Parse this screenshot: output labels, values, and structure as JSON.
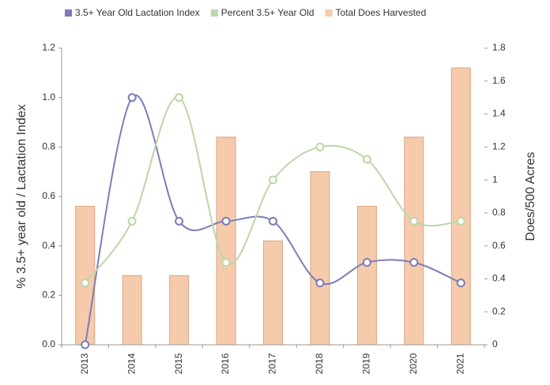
{
  "chart_data": {
    "type": "combo",
    "categories": [
      "2013",
      "2014",
      "2015",
      "2016",
      "2017",
      "2018",
      "2019",
      "2020",
      "2021"
    ],
    "series": [
      {
        "name": "3.5+ Year Old Lactation Index",
        "color": "#7b7db8",
        "type": "line",
        "values": [
          0,
          1.0,
          0.5,
          0.5,
          0.5,
          0.25,
          0.333,
          0.333,
          0.25
        ]
      },
      {
        "name": "Percent 3.5+ Year Old",
        "color": "#bdd6a9",
        "type": "line",
        "values": [
          0.25,
          0.5,
          1.0,
          0.333,
          0.667,
          0.8,
          0.75,
          0.5,
          0.5
        ]
      },
      {
        "name": "Total Does Harvested",
        "color": "#f5cbab",
        "type": "bar",
        "axis": "y2",
        "values": [
          0.84,
          0.42,
          0.42,
          1.26,
          0.63,
          1.05,
          0.84,
          1.26,
          1.68
        ]
      }
    ],
    "ylabel": "% 3.5+ year old / Lactation Index",
    "y2label": "Does/500 Acres",
    "ylim": [
      0,
      1.2
    ],
    "yticks": [
      {
        "value": 0,
        "label": "0.0"
      },
      0.2,
      0.4,
      0.6,
      0.8,
      {
        "value": 1,
        "label": "1.0"
      },
      1.2
    ],
    "y2lim": [
      0,
      1.8
    ],
    "y2ticks": [
      0,
      0.2,
      0.4,
      0.6,
      0.8,
      1,
      1.2,
      1.4,
      1.6,
      1.8
    ],
    "legend": "top",
    "grid": false
  }
}
